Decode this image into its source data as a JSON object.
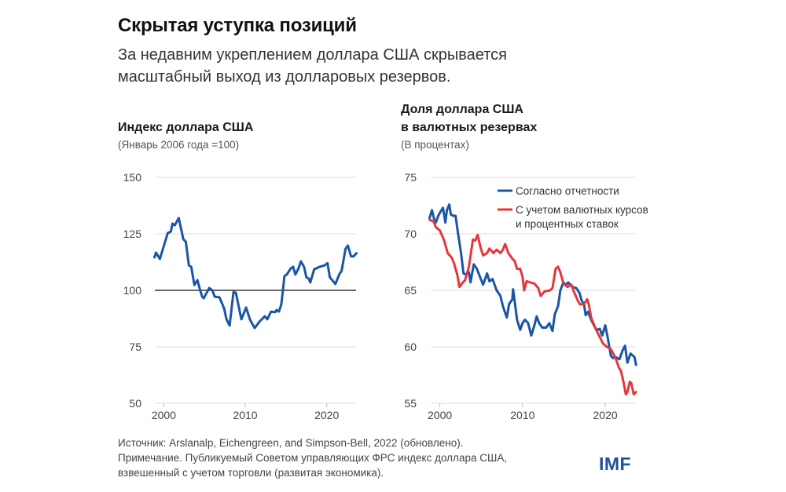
{
  "header": {
    "title": "Скрытая уступка позиций",
    "subtitle_lines": [
      "За недавним укреплением доллара США скрывается",
      "масштабный выход из долларовых резервов."
    ]
  },
  "footer": {
    "lines": [
      "Источник: Arslanalp, Eichengreen, and Simpson-Bell, 2022 (обновлено).",
      "Примечание. Публикуемый Советом управляющих ФРС индекс доллара США,",
      "взвешенный с учетом торговли (развитая экономика)."
    ],
    "logo": "IMF"
  },
  "colors": {
    "blue": "#1b55a6",
    "red": "#e5373b",
    "reference_line": "#333333",
    "grid": "#dddddd"
  },
  "chart_data": [
    {
      "type": "line",
      "title": "Индекс доллара США",
      "subtitle": "(Январь 2006 года  =100)",
      "xlabel": "",
      "ylabel": "",
      "xlim": [
        1998.9,
        2023.6
      ],
      "ylim": [
        50,
        150
      ],
      "xticks": [
        2000,
        2010,
        2020
      ],
      "xtick_labels": [
        "2000",
        "2010",
        "2020"
      ],
      "yticks": [
        50,
        75,
        100,
        125,
        150
      ],
      "ytick_labels": [
        "50",
        "75",
        "100",
        "125",
        "150"
      ],
      "grid": true,
      "reference_line": 100,
      "series": [
        {
          "name": "Индекс доллара США",
          "color": "#1b55a6",
          "x": [
            1998.85,
            1999.04,
            1999.52,
            2000.48,
            2000.87,
            2001.06,
            2001.35,
            2001.83,
            2002.4,
            2002.7,
            2003.08,
            2003.37,
            2003.75,
            2004.13,
            2004.33,
            2004.71,
            2004.9,
            2005.58,
            2005.96,
            2006.25,
            2006.83,
            2007.4,
            2007.7,
            2008.08,
            2008.56,
            2008.85,
            2009.52,
            2010.1,
            2010.58,
            2011.15,
            2011.73,
            2012.4,
            2012.7,
            2013.17,
            2013.65,
            2013.85,
            2014.13,
            2014.42,
            2014.81,
            2015.1,
            2015.58,
            2015.87,
            2016.15,
            2016.54,
            2016.83,
            2017.21,
            2017.5,
            2017.79,
            2017.98,
            2018.46,
            2019.13,
            2019.71,
            2020.1,
            2020.38,
            2021.06,
            2021.54,
            2021.83,
            2022.31,
            2022.6,
            2022.98,
            2023.27,
            2023.65
          ],
          "y": [
            114.6,
            116.7,
            113.9,
            125.3,
            126.0,
            129.5,
            128.8,
            132.0,
            122.6,
            121.5,
            111.0,
            110.4,
            102.4,
            104.5,
            101.7,
            97.2,
            96.5,
            101.0,
            100.0,
            97.2,
            96.9,
            92.0,
            87.2,
            84.4,
            99.3,
            98.9,
            87.2,
            92.4,
            87.0,
            83.3,
            86.1,
            88.5,
            87.2,
            90.6,
            90.3,
            91.3,
            90.6,
            93.7,
            106.3,
            107.0,
            109.7,
            110.4,
            107.0,
            109.7,
            112.8,
            110.4,
            105.8,
            105.2,
            103.5,
            109.3,
            110.4,
            111.0,
            112.0,
            105.8,
            102.8,
            107.0,
            108.7,
            118.4,
            119.8,
            115.0,
            115.0,
            116.4
          ]
        }
      ]
    },
    {
      "type": "line",
      "title_lines": [
        "Доля доллара США",
        "в валютных резервах"
      ],
      "subtitle": "(В процентах)",
      "xlabel": "",
      "ylabel": "",
      "xlim": [
        1998.9,
        2023.6
      ],
      "ylim": [
        55,
        75
      ],
      "xticks": [
        2000,
        2010,
        2020
      ],
      "xtick_labels": [
        "2000",
        "2010",
        "2020"
      ],
      "yticks": [
        55,
        60,
        65,
        70,
        75
      ],
      "ytick_labels": [
        "55",
        "60",
        "65",
        "70",
        "75"
      ],
      "grid": true,
      "legend_position": "top-right",
      "legend": [
        "Согласно отчетности",
        "С учетом валютных курсов",
        "и процентных ставок"
      ],
      "series": [
        {
          "name": "Согласно отчетности",
          "color": "#1b55a6",
          "x": [
            1998.76,
            1999.05,
            1999.33,
            1999.52,
            1999.81,
            2000.19,
            2000.38,
            2000.67,
            2000.86,
            2001.14,
            2001.33,
            2001.62,
            2001.9,
            2002.19,
            2002.57,
            2002.86,
            2003.14,
            2003.52,
            2003.71,
            2004.1,
            2004.48,
            2004.95,
            2005.24,
            2005.71,
            2006.0,
            2006.38,
            2006.86,
            2007.33,
            2007.62,
            2008.1,
            2008.38,
            2008.76,
            2008.86,
            2009.14,
            2009.33,
            2009.71,
            2010.0,
            2010.29,
            2010.67,
            2011.05,
            2011.43,
            2011.71,
            2012.0,
            2012.38,
            2012.86,
            2013.24,
            2013.62,
            2013.9,
            2014.29,
            2014.57,
            2014.95,
            2015.24,
            2015.52,
            2016.0,
            2016.48,
            2016.86,
            2017.14,
            2017.43,
            2017.62,
            2017.9,
            2018.29,
            2018.76,
            2019.05,
            2019.33,
            2019.62,
            2020.0,
            2020.29,
            2020.67,
            2020.95,
            2021.24,
            2021.71,
            2022.1,
            2022.38,
            2022.67,
            2023.05,
            2023.52,
            2023.71
          ],
          "y": [
            71.4,
            72.1,
            71.25,
            71.0,
            71.6,
            72.1,
            72.3,
            71.0,
            72.1,
            72.6,
            71.7,
            71.6,
            71.6,
            70.1,
            68.3,
            66.5,
            66.4,
            66.6,
            65.7,
            67.3,
            66.9,
            66.0,
            65.5,
            66.5,
            65.8,
            66.0,
            65.0,
            64.5,
            63.6,
            62.6,
            63.8,
            64.2,
            65.1,
            63.5,
            62.4,
            61.5,
            62.1,
            62.4,
            62.1,
            61.0,
            61.9,
            62.7,
            62.1,
            61.7,
            61.7,
            62.1,
            61.4,
            62.9,
            63.6,
            65.0,
            65.7,
            65.5,
            65.7,
            65.3,
            65.2,
            64.8,
            64.1,
            63.75,
            62.8,
            63.1,
            62.4,
            61.7,
            61.5,
            61.6,
            61.0,
            61.9,
            60.8,
            59.2,
            59.0,
            59.1,
            58.9,
            59.7,
            60.1,
            58.6,
            59.4,
            59.1,
            58.4
          ]
        },
        {
          "name": "С учетом валютных курсов и процентных ставок",
          "color": "#e5373b",
          "x": [
            1998.76,
            1999.24,
            1999.52,
            2000.0,
            2000.48,
            2000.95,
            2001.43,
            2001.71,
            2002.1,
            2002.38,
            2002.67,
            2003.05,
            2003.52,
            2004.0,
            2004.29,
            2004.57,
            2004.95,
            2005.24,
            2005.71,
            2006.0,
            2006.48,
            2006.86,
            2007.33,
            2007.62,
            2007.9,
            2008.29,
            2008.76,
            2009.05,
            2009.33,
            2009.71,
            2010.0,
            2010.19,
            2010.48,
            2010.95,
            2011.43,
            2011.9,
            2012.19,
            2012.67,
            2013.33,
            2013.62,
            2014.0,
            2014.29,
            2014.57,
            2014.95,
            2015.43,
            2015.9,
            2016.19,
            2016.67,
            2016.95,
            2017.43,
            2017.81,
            2018.0,
            2018.29,
            2018.76,
            2019.24,
            2019.71,
            2020.19,
            2020.67,
            2020.95,
            2021.24,
            2021.62,
            2021.9,
            2022.19,
            2022.48,
            2022.67,
            2022.95,
            2023.14,
            2023.43,
            2023.71
          ],
          "y": [
            71.25,
            71.1,
            70.6,
            70.3,
            69.5,
            68.3,
            67.9,
            67.4,
            66.4,
            65.3,
            65.6,
            65.9,
            67.1,
            69.5,
            69.4,
            69.9,
            68.7,
            68.1,
            68.3,
            68.7,
            68.3,
            68.6,
            68.3,
            68.6,
            69.1,
            68.3,
            67.8,
            67.6,
            66.9,
            66.9,
            66.2,
            65.0,
            65.8,
            65.7,
            65.6,
            65.2,
            64.5,
            64.9,
            65.0,
            65.2,
            66.9,
            67.1,
            66.6,
            65.6,
            65.3,
            65.5,
            64.9,
            64.1,
            63.75,
            63.8,
            64.2,
            63.75,
            62.6,
            61.7,
            61.0,
            60.3,
            60.0,
            59.8,
            59.4,
            59.0,
            58.2,
            57.85,
            56.9,
            55.8,
            56.0,
            56.9,
            56.8,
            55.8,
            56.0
          ]
        }
      ]
    }
  ]
}
